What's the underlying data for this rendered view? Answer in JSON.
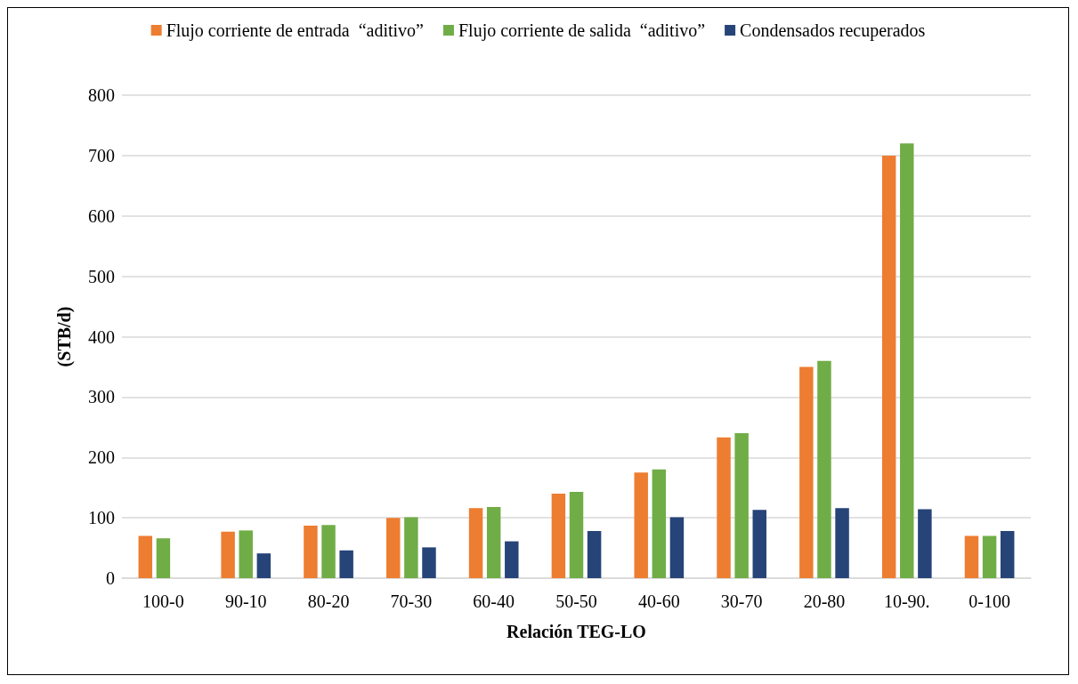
{
  "chart_data": {
    "type": "bar",
    "xlabel": "Relación TEG-LO",
    "ylabel": "(STB/d)",
    "categories": [
      "100-0",
      "90-10",
      "80-20",
      "70-30",
      "60-40",
      "50-50",
      "40-60",
      "30-70",
      "20-80",
      "10-90.",
      "0-100"
    ],
    "series": [
      {
        "name": "Flujo corriente de entrada  “aditivo”",
        "color": "#ed7d31",
        "values": [
          70,
          77,
          87,
          100,
          116,
          140,
          175,
          233,
          350,
          700,
          70
        ]
      },
      {
        "name": "Flujo corriente de salida  “aditivo”",
        "color": "#70ad47",
        "values": [
          66,
          79,
          88,
          101,
          118,
          143,
          180,
          240,
          360,
          720,
          70
        ]
      },
      {
        "name": "Condensados recuperados",
        "color": "#264478",
        "values": [
          null,
          41,
          46,
          51,
          61,
          78,
          101,
          113,
          116,
          114,
          78
        ]
      }
    ],
    "ylim": [
      0,
      800
    ],
    "yticks": [
      0,
      100,
      200,
      300,
      400,
      500,
      600,
      700,
      800
    ],
    "grid": "y",
    "legend": "top"
  }
}
